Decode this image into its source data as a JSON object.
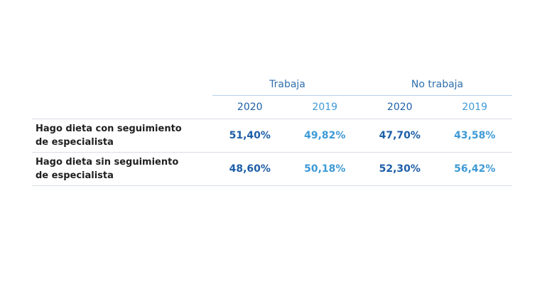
{
  "groups": [
    "Trabaja",
    "No trabaja"
  ],
  "years": [
    "2020",
    "2019",
    "2020",
    "2019"
  ],
  "rows": [
    {
      "label_line1": "Hago dieta con seguimiento",
      "label_line2": "de especialista",
      "values": [
        "51,40%",
        "49,82%",
        "47,70%",
        "43,58%"
      ]
    },
    {
      "label_line1": "Hago dieta sin seguimiento",
      "label_line2": "de especialista",
      "values": [
        "48,60%",
        "50,18%",
        "52,30%",
        "56,42%"
      ]
    }
  ],
  "colors": {
    "header_blue": "#2f6fad",
    "value_2020": "#1d5ea8",
    "value_2019": "#3d9ad6",
    "header_rule": "#b9cfe6",
    "row_rule": "#d8dde3"
  }
}
